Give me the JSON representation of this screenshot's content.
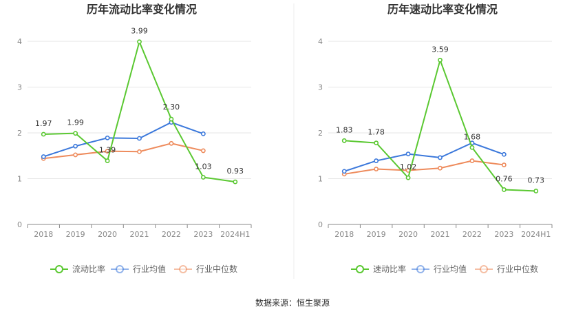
{
  "source": "数据来源：恒生聚源",
  "chart_data": [
    {
      "type": "line",
      "title": "历年流动比率变化情况",
      "categories": [
        "2018",
        "2019",
        "2020",
        "2021",
        "2022",
        "2023",
        "2024H1"
      ],
      "ylim": [
        0,
        4
      ],
      "yticks": [
        "0",
        "1",
        "2",
        "3",
        "4"
      ],
      "grid": true,
      "legend_position": "bottom",
      "series": [
        {
          "name": "流动比率",
          "color": "#5ac831",
          "values": [
            1.97,
            1.99,
            1.39,
            3.99,
            2.3,
            1.03,
            0.93
          ],
          "labels": [
            "1.97",
            "1.99",
            "1.39",
            "3.99",
            "2.30",
            "1.03",
            "0.93"
          ],
          "show_labels": true
        },
        {
          "name": "行业均值",
          "color": "#3b78db",
          "values": [
            1.48,
            1.71,
            1.89,
            1.88,
            2.23,
            1.98,
            null
          ],
          "show_labels": false
        },
        {
          "name": "行业中位数",
          "color": "#ee8b5c",
          "values": [
            1.44,
            1.52,
            1.6,
            1.59,
            1.77,
            1.61,
            null
          ],
          "show_labels": false
        }
      ]
    },
    {
      "type": "line",
      "title": "历年速动比率变化情况",
      "categories": [
        "2018",
        "2019",
        "2020",
        "2021",
        "2022",
        "2023",
        "2024H1"
      ],
      "ylim": [
        0,
        4
      ],
      "yticks": [
        "0",
        "1",
        "2",
        "3",
        "4"
      ],
      "grid": true,
      "legend_position": "bottom",
      "series": [
        {
          "name": "速动比率",
          "color": "#5ac831",
          "values": [
            1.83,
            1.78,
            1.02,
            3.59,
            1.68,
            0.76,
            0.73
          ],
          "labels": [
            "1.83",
            "1.78",
            "1.02",
            "3.59",
            "1.68",
            "0.76",
            "0.73"
          ],
          "show_labels": true
        },
        {
          "name": "行业均值",
          "color": "#3b78db",
          "values": [
            1.16,
            1.39,
            1.54,
            1.46,
            1.78,
            1.53,
            null
          ],
          "show_labels": false
        },
        {
          "name": "行业中位数",
          "color": "#ee8b5c",
          "values": [
            1.1,
            1.21,
            1.18,
            1.23,
            1.39,
            1.3,
            null
          ],
          "show_labels": false
        }
      ]
    }
  ]
}
